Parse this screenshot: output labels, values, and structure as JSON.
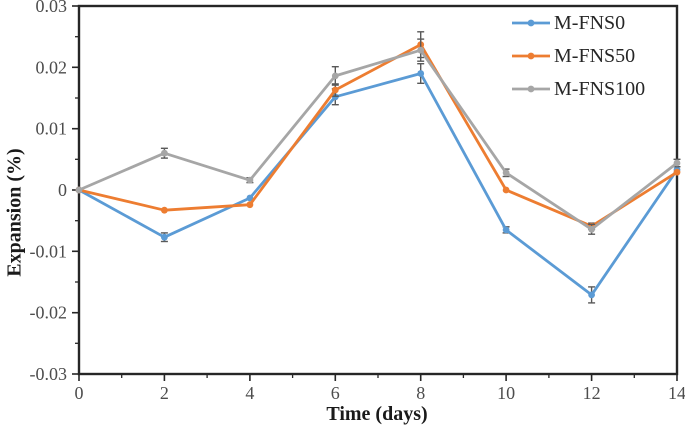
{
  "figure": {
    "background": "#ffffff"
  },
  "chart_data": {
    "type": "line",
    "title": "",
    "xlabel": "Time (days)",
    "ylabel": "Expansion (%)",
    "xlim": [
      0,
      14
    ],
    "ylim": [
      -0.03,
      0.03
    ],
    "x": [
      0,
      2,
      4,
      6,
      8,
      10,
      12,
      14
    ],
    "x_tick_labels": [
      "0",
      "2",
      "4",
      "6",
      "8",
      "10",
      "12",
      "14"
    ],
    "y_ticks": [
      0.03,
      0.02,
      0.01,
      0,
      -0.01,
      -0.02,
      -0.03
    ],
    "y_tick_labels": [
      "0.03",
      "0.02",
      "0.01",
      "0",
      "-0.01",
      "-0.02",
      "-0.03"
    ],
    "x_minor_step": 1,
    "y_minor_step": 0.005,
    "grid": false,
    "legend_position": "top-right-inside",
    "marker": "circle",
    "colors": {
      "axis": "#262626",
      "tick_label": "#4d4d4d",
      "error_bar": "#595959",
      "legend_text": "#262626"
    },
    "series": [
      {
        "name": "M-FNS0",
        "color": "#5B9BD5",
        "values": [
          0,
          -0.0077,
          -0.0013,
          0.0152,
          0.019,
          -0.0065,
          -0.0171,
          0.0033
        ],
        "errors": [
          0,
          0.0007,
          0,
          0.0013,
          0.0016,
          0.0005,
          0.0013,
          0
        ]
      },
      {
        "name": "M-FNS50",
        "color": "#ED7D31",
        "values": [
          0,
          -0.0033,
          -0.0024,
          0.0163,
          0.0237,
          0,
          -0.0059,
          0.0029
        ],
        "errors": [
          0,
          0,
          0,
          0.001,
          0.0021,
          0,
          0.0005,
          0
        ]
      },
      {
        "name": "M-FNS100",
        "color": "#A6A6A6",
        "values": [
          0,
          0.006,
          0.0016,
          0.0186,
          0.0228,
          0.0028,
          -0.0064,
          0.0044
        ],
        "errors": [
          0,
          0.0008,
          0.0004,
          0.0015,
          0.0018,
          0.0006,
          0.0008,
          0.0006
        ]
      }
    ]
  }
}
